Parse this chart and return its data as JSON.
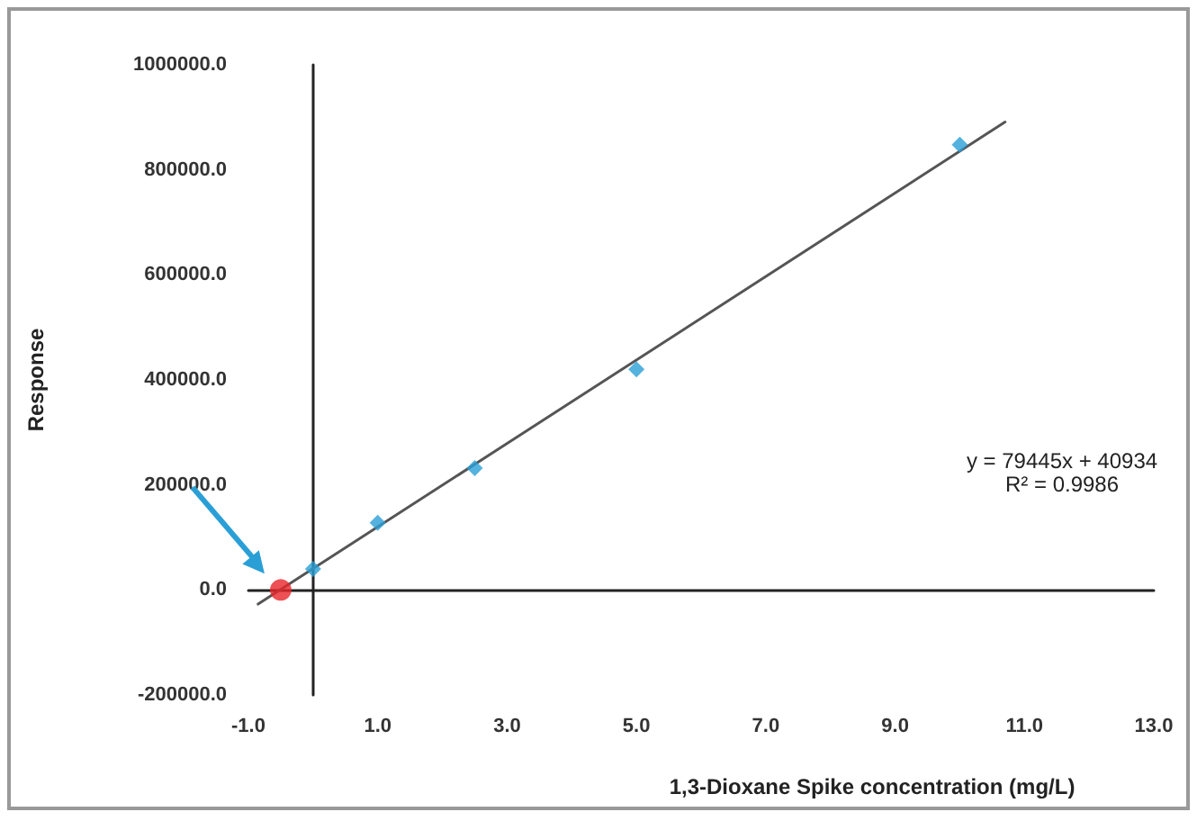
{
  "chart_data": {
    "type": "scatter",
    "xlabel": "1,3-Dioxane Spike concentration (mg/L)",
    "ylabel": "Response",
    "series": [
      {
        "x": [
          0,
          1,
          2.5,
          5,
          10
        ],
        "values": [
          40000,
          128000,
          232000,
          420000,
          848000
        ],
        "color": "#2a9fd6",
        "marker": "diamond"
      },
      {
        "type": "scatter",
        "x": [
          -0.5
        ],
        "values": [
          0
        ],
        "color": "#e8262a",
        "marker": "circle"
      },
      {
        "type": "line",
        "x": [
          -0.85,
          10.7
        ],
        "values": [
          -27000,
          891000
        ],
        "color": "#555555",
        "marker": "none",
        "line_style": "solid"
      }
    ],
    "xlim": [
      -1,
      13
    ],
    "xticks": [
      {
        "value": -1,
        "label": "-1.0"
      },
      {
        "value": 1,
        "label": "1.0"
      },
      {
        "value": 3,
        "label": "3.0"
      },
      {
        "value": 5,
        "label": "5.0"
      },
      {
        "value": 7,
        "label": "7.0"
      },
      {
        "value": 9,
        "label": "9.0"
      },
      {
        "value": 11,
        "label": "11.0"
      },
      {
        "value": 13,
        "label": "13.0"
      }
    ],
    "ylim": [
      -200000,
      1000000
    ],
    "yticks": [
      {
        "value": -200000,
        "label": "-200000.0"
      },
      {
        "value": 0,
        "label": "0.0"
      },
      {
        "value": 200000,
        "label": "200000.0"
      },
      {
        "value": 400000,
        "label": "400000.0"
      },
      {
        "value": 600000,
        "label": "600000.0"
      },
      {
        "value": 800000,
        "label": "800000.0"
      },
      {
        "value": 1000000,
        "label": "1000000.0"
      }
    ],
    "annotations": [
      "y = 79445x + 40934",
      "R² = 0.9986"
    ]
  }
}
